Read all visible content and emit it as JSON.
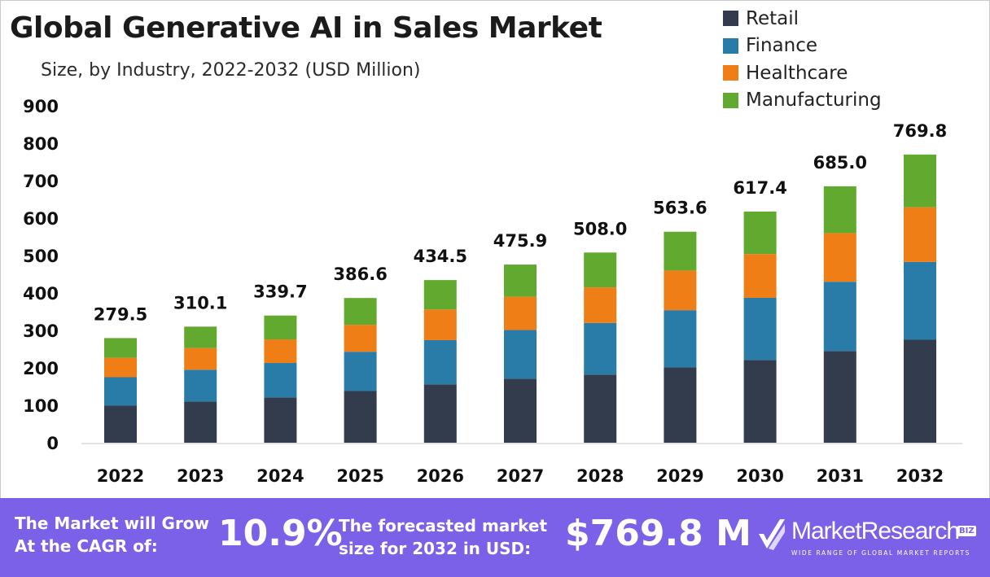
{
  "title": "Global Generative AI in Sales Market",
  "subtitle": "Size, by Industry, 2022-2032 (USD Million)",
  "legend": [
    {
      "label": "Retail",
      "color": "#323c4d"
    },
    {
      "label": "Finance",
      "color": "#2a7ca8"
    },
    {
      "label": "Healthcare",
      "color": "#ef7e17"
    },
    {
      "label": "Manufacturing",
      "color": "#62a92f"
    }
  ],
  "chart_data": {
    "type": "bar",
    "stacked": true,
    "title": "Global Generative AI in Sales Market",
    "subtitle": "Size, by Industry, 2022-2032 (USD Million)",
    "xlabel": "",
    "ylabel": "",
    "ylim": [
      0,
      900
    ],
    "yticks": [
      0,
      100,
      200,
      300,
      400,
      500,
      600,
      700,
      800,
      900
    ],
    "grid": false,
    "legend_position": "top-right",
    "categories": [
      "2022",
      "2023",
      "2024",
      "2025",
      "2026",
      "2027",
      "2028",
      "2029",
      "2030",
      "2031",
      "2032"
    ],
    "series": [
      {
        "name": "Retail",
        "color": "#323c4d",
        "values": [
          99,
          110,
          121,
          138,
          156,
          171,
          182,
          201,
          221,
          245,
          275
        ]
      },
      {
        "name": "Finance",
        "color": "#2a7ca8",
        "values": [
          76,
          85,
          92,
          105,
          118,
          130,
          138,
          153,
          166,
          185,
          208
        ]
      },
      {
        "name": "Healthcare",
        "color": "#ef7e17",
        "values": [
          52,
          58,
          63,
          72,
          82,
          89,
          95,
          106,
          117,
          130,
          146
        ]
      },
      {
        "name": "Manufacturing",
        "color": "#62a92f",
        "values": [
          52.5,
          57.1,
          63.7,
          71.6,
          78.5,
          85.9,
          93.0,
          103.6,
          113.4,
          125.0,
          140.8
        ]
      }
    ],
    "totals": [
      "279.5",
      "310.1",
      "339.7",
      "386.6",
      "434.5",
      "475.9",
      "508.0",
      "563.6",
      "617.4",
      "685.0",
      "769.8"
    ]
  },
  "footer": {
    "cagr_label_line1": "The Market will Grow",
    "cagr_label_line2": "At the CAGR of:",
    "cagr_value": "10.9%",
    "forecast_label_line1": "The forecasted market",
    "forecast_label_line2": "size for 2032 in USD:",
    "forecast_value": "$769.8 M",
    "brand_name": "MarketResearch",
    "brand_badge": "BIZ",
    "brand_tagline": "WIDE RANGE OF GLOBAL MARKET REPORTS"
  }
}
